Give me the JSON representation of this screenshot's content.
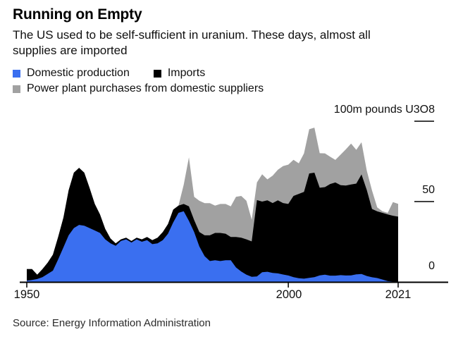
{
  "header": {
    "title": "Running on Empty",
    "subtitle_line1": "The US used to be self-sufficient in uranium. These days, almost all",
    "subtitle_line2": "supplies are imported"
  },
  "legend": {
    "items": [
      {
        "label": "Domestic production",
        "color": "#3A6FF0"
      },
      {
        "label": "Imports",
        "color": "#000000"
      },
      {
        "label": "Power plant purchases from domestic suppliers",
        "color": "#A1A1A1"
      }
    ]
  },
  "source": "Source: Energy Information Administration",
  "chart_data": {
    "type": "area",
    "stacked": true,
    "title": "Running on Empty",
    "unit_label": "100m pounds U3O8",
    "ylabel": "million pounds U3O8",
    "ylim": [
      0,
      100
    ],
    "grid": false,
    "legend_position": "top",
    "x": [
      1950,
      1951,
      1952,
      1953,
      1954,
      1955,
      1956,
      1957,
      1958,
      1959,
      1960,
      1961,
      1962,
      1963,
      1964,
      1965,
      1966,
      1967,
      1968,
      1969,
      1970,
      1971,
      1972,
      1973,
      1974,
      1975,
      1976,
      1977,
      1978,
      1979,
      1980,
      1981,
      1982,
      1983,
      1984,
      1985,
      1986,
      1987,
      1988,
      1989,
      1990,
      1991,
      1992,
      1993,
      1994,
      1995,
      1996,
      1997,
      1998,
      1999,
      2000,
      2001,
      2002,
      2003,
      2004,
      2005,
      2006,
      2007,
      2008,
      2009,
      2010,
      2011,
      2012,
      2013,
      2014,
      2015,
      2016,
      2017,
      2018,
      2019,
      2020,
      2021
    ],
    "series": [
      {
        "name": "Domestic production",
        "color": "#3A6FF0",
        "values": [
          0.8,
          1.2,
          1.8,
          3,
          5,
          7,
          14,
          21.5,
          29,
          33.5,
          35.5,
          35,
          33.5,
          32,
          30.5,
          26.5,
          24,
          22.5,
          25.5,
          26.5,
          24.5,
          26.5,
          25,
          26,
          23.5,
          24,
          26,
          30,
          37,
          43,
          44,
          38,
          31,
          22,
          16,
          13,
          13.5,
          13,
          13.5,
          13.5,
          9,
          6.5,
          4.5,
          3.2,
          3.4,
          6,
          6.3,
          5.6,
          5.3,
          4.6,
          4,
          3,
          2.3,
          2,
          2.5,
          3,
          4.1,
          4.5,
          3.9,
          3.9,
          4.2,
          4,
          4.1,
          4.7,
          4.9,
          3.7,
          2.9,
          2.4,
          1.5,
          0.5,
          0.2,
          0.1
        ]
      },
      {
        "name": "Imports",
        "color": "#000000",
        "values": [
          7.2,
          6.8,
          2.7,
          5,
          7,
          10,
          14,
          18.5,
          28,
          34.5,
          35.5,
          33,
          25,
          16.5,
          11.5,
          6.5,
          3,
          1.5,
          1,
          1,
          1,
          1,
          1.5,
          2,
          2.5,
          3.5,
          5,
          6,
          8,
          4.5,
          4.5,
          9,
          7.5,
          9,
          13,
          16,
          17,
          17.5,
          16.5,
          14.5,
          19,
          21,
          22,
          22,
          47.5,
          44,
          44.5,
          43.5,
          45.5,
          44.5,
          44.5,
          50.5,
          52.5,
          54,
          65,
          65,
          54.5,
          54.5,
          57,
          58,
          56,
          56,
          56.5,
          56.5,
          62,
          53.5,
          42.5,
          41.5,
          41.5,
          41.5,
          41,
          40.5
        ]
      },
      {
        "name": "Power plant purchases from domestic suppliers",
        "color": "#A1A1A1",
        "values": [
          0,
          0,
          0,
          0,
          0,
          0,
          0,
          0,
          0,
          0,
          0,
          0,
          0,
          0,
          0,
          0,
          0,
          0,
          0,
          0,
          0,
          0,
          0,
          0,
          0,
          0,
          0,
          0,
          0,
          0,
          12,
          30.5,
          14.5,
          19.5,
          20,
          20,
          17,
          18,
          18.5,
          19,
          25,
          26,
          24,
          13.5,
          11,
          17,
          13,
          17,
          19,
          23,
          24.5,
          22.5,
          19,
          24,
          27.5,
          28,
          21.5,
          21,
          17,
          14,
          19,
          22.5,
          25.5,
          21,
          20,
          12,
          11.5,
          2.5,
          1,
          1,
          8.5,
          8
        ]
      }
    ],
    "yticks": [
      {
        "value": 0,
        "label": "0"
      },
      {
        "value": 50,
        "label": "50"
      },
      {
        "value": 100,
        "label": "100m pounds U3O8"
      }
    ],
    "xticks": [
      {
        "value": 1950,
        "label": "1950"
      },
      {
        "value": 2000,
        "label": "2000"
      },
      {
        "value": 2021,
        "label": "2021"
      }
    ]
  }
}
